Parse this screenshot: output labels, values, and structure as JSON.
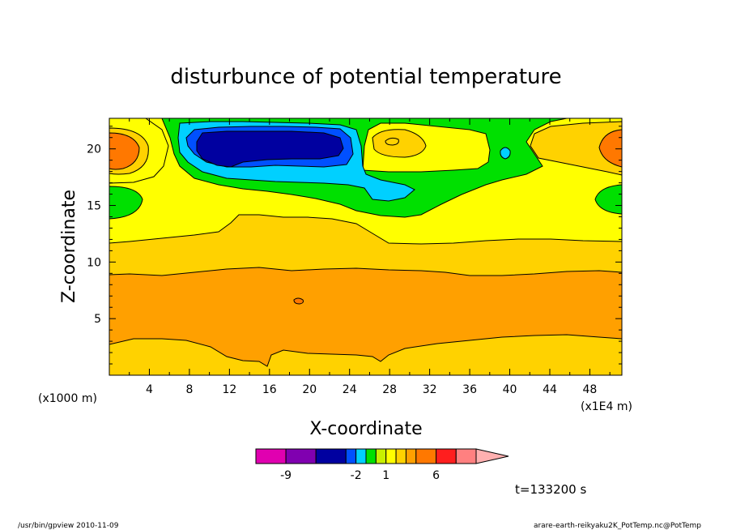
{
  "chart_data": {
    "type": "heatmap",
    "title": "disturbunce of potential temperature",
    "xlabel": "X-coordinate",
    "ylabel": "Z-coordinate",
    "x_unit_left": "(x1000 m)",
    "x_unit_right": "(x1E4 m)",
    "x_ticks": [
      "4",
      "8",
      "12",
      "16",
      "20",
      "24",
      "28",
      "32",
      "36",
      "40",
      "44",
      "48"
    ],
    "y_ticks": [
      "5",
      "10",
      "15",
      "20"
    ],
    "xlim": [
      0,
      51.2
    ],
    "ylim": [
      0,
      22.7
    ],
    "colorbar": {
      "levels": [
        -12,
        -9,
        -6,
        -3,
        -2,
        -1,
        0,
        1,
        2,
        3,
        4,
        6,
        8,
        10
      ],
      "colors": [
        "#e000b0",
        "#8000b0",
        "#0000a0",
        "#0050ff",
        "#00d0ff",
        "#00e000",
        "#c8f000",
        "#ffff00",
        "#ffd200",
        "#ffa000",
        "#ff7800",
        "#ff1e1e",
        "#ff8080",
        "#ffb0b0"
      ],
      "labels": [
        "-9",
        "-2",
        "1",
        "6"
      ],
      "label_levels": [
        -9,
        -2,
        1,
        6
      ]
    },
    "time_label": "t=133200 s",
    "colors": {
      "band_orange": "#ffa000",
      "band_amber": "#ffd200",
      "band_yellow": "#ffff00",
      "green": "#00e000",
      "cyan": "#00d0ff",
      "blue": "#0050ff",
      "navy": "#0000a0",
      "dark_orange": "#ff7800"
    }
  },
  "footer": {
    "left": "/usr/bin/gpview  2010-11-09",
    "right": "arare-earth-reikyaku2K_PotTemp.nc@PotTemp"
  }
}
